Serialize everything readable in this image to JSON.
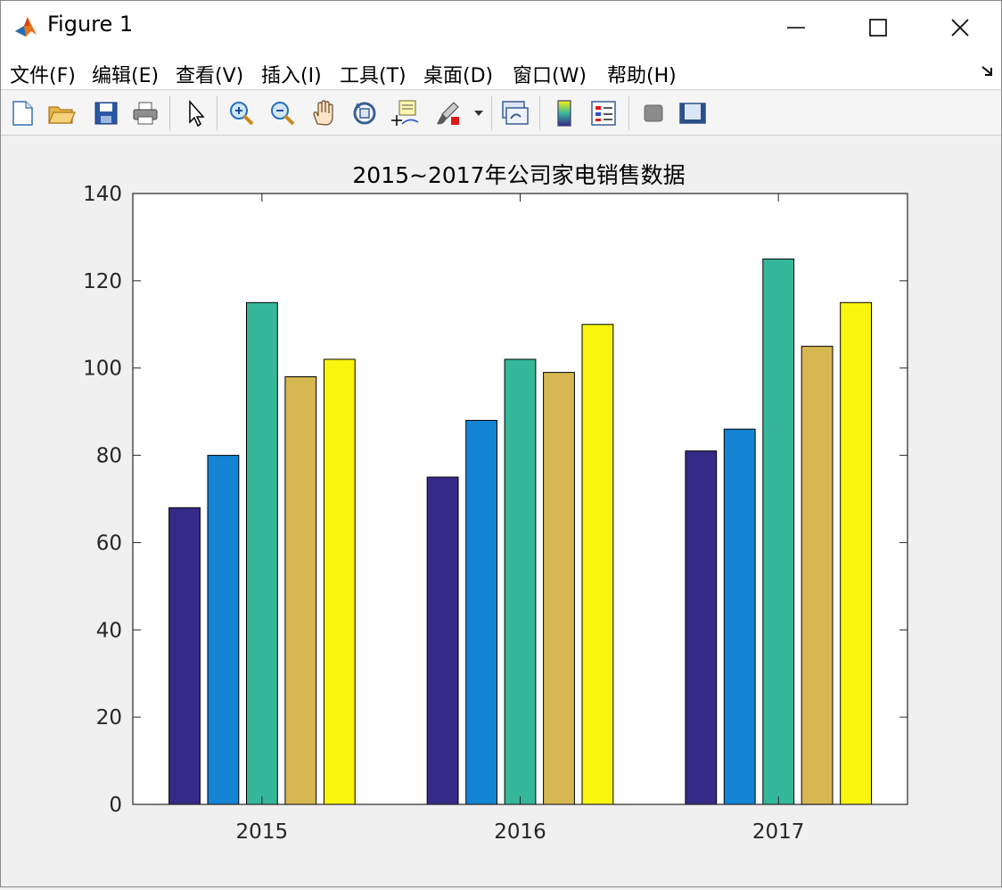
{
  "window": {
    "title": "Figure 1"
  },
  "menu": {
    "items": [
      {
        "label": "文件(F)"
      },
      {
        "label": "编辑(E)"
      },
      {
        "label": "查看(V)"
      },
      {
        "label": "插入(I)"
      },
      {
        "label": "工具(T)"
      },
      {
        "label": "桌面(D)"
      },
      {
        "label": "窗口(W)"
      },
      {
        "label": "帮助(H)"
      }
    ]
  },
  "toolbar": {
    "icons": [
      "new-figure-icon",
      "open-file-icon",
      "save-icon",
      "print-icon",
      "select-pointer-icon",
      "zoom-in-icon",
      "zoom-out-icon",
      "pan-hand-icon",
      "rotate-3d-icon",
      "data-cursor-icon",
      "brush-icon",
      "link-plot-icon",
      "colorbar-icon",
      "legend-icon",
      "hide-plot-tools-icon",
      "show-plot-tools-icon"
    ]
  },
  "chart_data": {
    "type": "bar",
    "title": "2015~2017年公司家电销售数据",
    "xlabel": "",
    "ylabel": "",
    "categories": [
      "2015",
      "2016",
      "2017"
    ],
    "ylim": [
      0,
      140
    ],
    "yticks": [
      0,
      20,
      40,
      60,
      80,
      100,
      120,
      140
    ],
    "grid": false,
    "series": [
      {
        "values": [
          68,
          75,
          81
        ],
        "color": "#352a87"
      },
      {
        "values": [
          80,
          88,
          86
        ],
        "color": "#1484d4"
      },
      {
        "values": [
          115,
          102,
          125
        ],
        "color": "#35b899"
      },
      {
        "values": [
          98,
          99,
          105
        ],
        "color": "#d6b751"
      },
      {
        "values": [
          102,
          110,
          115
        ],
        "color": "#f9f50d"
      }
    ]
  }
}
